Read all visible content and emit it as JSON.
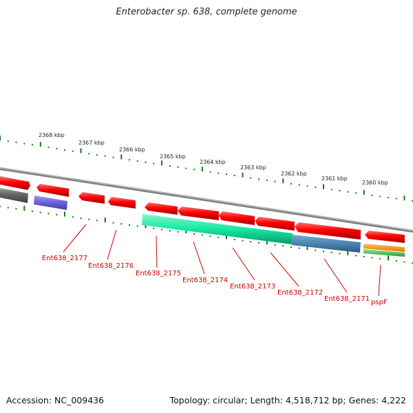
{
  "title": "Enterobacter sp. 638, complete genome",
  "footer": {
    "accession": "Accession: NC_009436",
    "topology": "Topology: circular; Length: 4,518,712 bp; Genes: 4,222"
  },
  "ticks": [
    {
      "label": "2368 kbp"
    },
    {
      "label": "2367 kbp"
    },
    {
      "label": "2366 kbp"
    },
    {
      "label": "2365 kbp"
    },
    {
      "label": "2364 kbp"
    },
    {
      "label": "2363 kbp"
    },
    {
      "label": "2362 kbp"
    },
    {
      "label": "2361 kbp"
    },
    {
      "label": "2360 kbp"
    }
  ],
  "gene_labels": [
    {
      "name": "Ent638_2177"
    },
    {
      "name": "Ent638_2176"
    },
    {
      "name": "Ent638_2175"
    },
    {
      "name": "Ent638_2174"
    },
    {
      "name": "Ent638_2173"
    },
    {
      "name": "Ent638_2172"
    },
    {
      "name": "Ent638_2171"
    },
    {
      "name": "pspF"
    }
  ],
  "colors": {
    "cds": "#ff0000",
    "backbone": "#7a7a7a",
    "tick": "#0f7a0f",
    "label": "#cc0000",
    "purple": "#6b5fd6",
    "teal": "#16e8a0",
    "steel": "#4a82b0",
    "orange": "#f08a00",
    "green": "#3fbf3f",
    "gray_box": "#606060"
  }
}
